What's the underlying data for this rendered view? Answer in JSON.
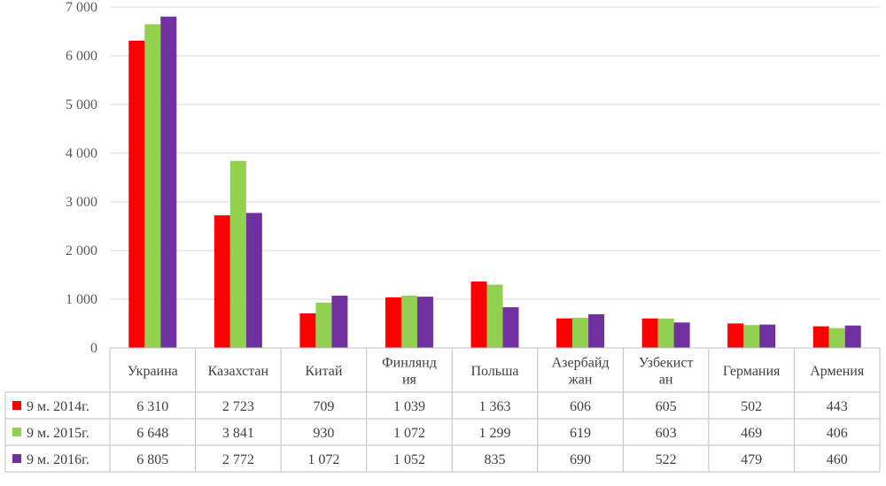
{
  "chart_data": {
    "type": "bar",
    "title": "",
    "xlabel": "",
    "ylabel": "",
    "ylim": [
      0,
      7000
    ],
    "yticks": [
      "0",
      "1 000",
      "2 000",
      "3 000",
      "4 000",
      "5 000",
      "6 000",
      "7 000"
    ],
    "grid": true,
    "legend": "data-table-left",
    "categories": [
      [
        "Украина"
      ],
      [
        "Казахстан"
      ],
      [
        "Китай"
      ],
      [
        "Финлянд",
        "ия"
      ],
      [
        "Польша"
      ],
      [
        "Азербайд",
        "жан"
      ],
      [
        "Узбекист",
        "ан"
      ],
      [
        "Германия"
      ],
      [
        "Армения"
      ]
    ],
    "series": [
      {
        "name": "9 м. 2014г.",
        "color": "#ff0000",
        "values": [
          6310,
          2723,
          709,
          1039,
          1363,
          606,
          605,
          502,
          443
        ],
        "labels": [
          "6 310",
          "2 723",
          "709",
          "1 039",
          "1 363",
          "606",
          "605",
          "502",
          "443"
        ]
      },
      {
        "name": "9 м. 2015г.",
        "color": "#92d050",
        "values": [
          6648,
          3841,
          930,
          1072,
          1299,
          619,
          603,
          469,
          406
        ],
        "labels": [
          "6 648",
          "3 841",
          "930",
          "1 072",
          "1 299",
          "619",
          "603",
          "469",
          "406"
        ]
      },
      {
        "name": "9 м. 2016г.",
        "color": "#7030a0",
        "values": [
          6805,
          2772,
          1072,
          1052,
          835,
          690,
          522,
          479,
          460
        ],
        "labels": [
          "6 805",
          "2 772",
          "1 072",
          "1 052",
          "835",
          "690",
          "522",
          "479",
          "460"
        ]
      }
    ]
  }
}
